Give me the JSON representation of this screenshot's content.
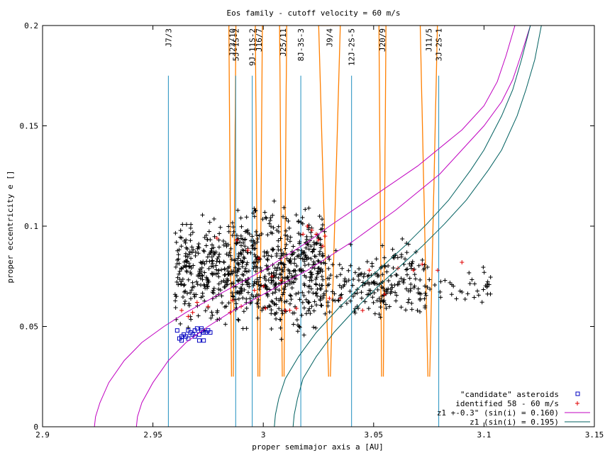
{
  "chart_data": {
    "type": "scatter",
    "title": "Eos family - cutoff velocity = 60 m/s",
    "xlabel": "proper semimajor axis a [AU]",
    "ylabel": "proper eccentricity e []",
    "xlim": [
      2.9,
      3.15
    ],
    "ylim": [
      0,
      0.2
    ],
    "xticks": [
      2.9,
      2.95,
      3.0,
      3.05,
      3.1,
      3.15
    ],
    "xtick_labels": [
      "2.9",
      "2.95",
      "3",
      "3.05",
      "3.1",
      "3.15"
    ],
    "yticks": [
      0,
      0.05,
      0.1,
      0.15,
      0.2
    ],
    "ytick_labels": [
      "0",
      "0.05",
      "0.1",
      "0.15",
      "0.2"
    ],
    "grid": false,
    "legend_position": "bottom-right",
    "resonances": [
      {
        "label": "J7/3",
        "a": 2.957,
        "top_e": 0.175,
        "kind": "three-body"
      },
      {
        "label": "J23/10",
        "a": 2.986,
        "top_e": 0.2,
        "kind": "two-body"
      },
      {
        "label": "5J-1S-2",
        "a": 2.9875,
        "top_e": 0.175,
        "kind": "three-body"
      },
      {
        "label": "9J-11S-2",
        "a": 2.995,
        "top_e": 0.175,
        "kind": "three-body"
      },
      {
        "label": "J16/7",
        "a": 2.998,
        "top_e": 0.2,
        "kind": "two-body"
      },
      {
        "label": "J25/11",
        "a": 3.009,
        "top_e": 0.2,
        "kind": "two-body"
      },
      {
        "label": "8J-3S-3",
        "a": 3.017,
        "top_e": 0.175,
        "kind": "three-body"
      },
      {
        "label": "J9/4",
        "a": 3.03,
        "top_e": 0.2,
        "kind": "two-body"
      },
      {
        "label": "12J-2S-5",
        "a": 3.04,
        "top_e": 0.175,
        "kind": "three-body"
      },
      {
        "label": "J20/9",
        "a": 3.054,
        "top_e": 0.2,
        "kind": "two-body"
      },
      {
        "label": "J11/5",
        "a": 3.075,
        "top_e": 0.2,
        "kind": "two-body"
      },
      {
        "label": "3J-2S-1",
        "a": 3.0795,
        "top_e": 0.175,
        "kind": "three-body"
      }
    ],
    "resonance_colors": {
      "two-body": "#ff7f00",
      "three-body": "#1f8fbf"
    },
    "series": [
      {
        "name": "\"candidate\" asteroids",
        "color": "#0000c0",
        "marker": "square",
        "x": [
          2.961,
          2.962,
          2.963,
          2.964,
          2.965,
          2.966,
          2.966,
          2.967,
          2.968,
          2.969,
          2.969,
          2.97,
          2.971,
          2.971,
          2.972,
          2.972,
          2.973,
          2.973,
          2.974,
          2.975,
          2.976,
          2.963
        ],
        "y": [
          0.048,
          0.044,
          0.043,
          0.046,
          0.045,
          0.044,
          0.048,
          0.047,
          0.046,
          0.045,
          0.048,
          0.049,
          0.046,
          0.043,
          0.048,
          0.049,
          0.047,
          0.043,
          0.047,
          0.048,
          0.047,
          0.045
        ]
      },
      {
        "name": "identified 58 - 60 m/s",
        "color": "#e00000",
        "marker": "plus",
        "x": [
          2.963,
          2.966,
          2.968,
          2.97,
          2.975,
          2.985,
          2.986,
          2.988,
          2.99,
          2.993,
          2.996,
          2.998,
          3.0,
          3.004,
          3.008,
          3.012,
          3.015,
          3.018,
          3.02,
          3.022,
          3.024,
          3.025,
          3.027,
          3.028,
          3.03,
          3.035,
          3.045,
          3.048,
          3.055,
          3.061,
          3.068,
          3.072,
          3.079,
          3.09,
          2.979,
          3.001,
          3.01
        ],
        "y": [
          0.058,
          0.055,
          0.057,
          0.062,
          0.06,
          0.057,
          0.063,
          0.093,
          0.06,
          0.088,
          0.068,
          0.084,
          0.07,
          0.075,
          0.073,
          0.058,
          0.059,
          0.096,
          0.1,
          0.098,
          0.096,
          0.093,
          0.09,
          0.095,
          0.064,
          0.064,
          0.058,
          0.078,
          0.066,
          0.079,
          0.078,
          0.081,
          0.078,
          0.082,
          0.094,
          0.059,
          0.058
        ]
      },
      {
        "name": "z1 +-0.3\" (sin(i) = 0.160)",
        "color": "#c000c0",
        "marker": "line",
        "curves": [
          {
            "x": [
              2.9235,
              2.924,
              2.926,
              2.93,
              2.937,
              2.945,
              2.955,
              2.965,
              2.975,
              2.99,
              3.0,
              3.01,
              3.02,
              3.03,
              3.05,
              3.07,
              3.09,
              3.1,
              3.106,
              3.11,
              3.114
            ],
            "y": [
              0,
              0.005,
              0.012,
              0.022,
              0.033,
              0.042,
              0.05,
              0.057,
              0.063,
              0.072,
              0.078,
              0.085,
              0.092,
              0.1,
              0.115,
              0.13,
              0.148,
              0.16,
              0.172,
              0.185,
              0.2
            ]
          },
          {
            "x": [
              2.9425,
              2.943,
              2.945,
              2.95,
              2.957,
              2.965,
              2.975,
              2.985,
              2.995,
              3.01,
              3.02,
              3.03,
              3.04,
              3.06,
              3.08,
              3.1,
              3.108,
              3.113,
              3.117,
              3.121
            ],
            "y": [
              0,
              0.005,
              0.012,
              0.022,
              0.033,
              0.042,
              0.05,
              0.057,
              0.063,
              0.072,
              0.078,
              0.085,
              0.092,
              0.108,
              0.126,
              0.15,
              0.162,
              0.173,
              0.186,
              0.2
            ]
          }
        ]
      },
      {
        "name": "z1 (sin(i) = 0.195)",
        "color": "#006060",
        "marker": "line",
        "curves": [
          {
            "x": [
              3.005,
              3.0055,
              3.007,
              3.01,
              3.016,
              3.024,
              3.034,
              3.044,
              3.054,
              3.064,
              3.074,
              3.084,
              3.094,
              3.1,
              3.108,
              3.113,
              3.117,
              3.121
            ],
            "y": [
              0,
              0.006,
              0.014,
              0.024,
              0.035,
              0.047,
              0.059,
              0.07,
              0.08,
              0.09,
              0.101,
              0.113,
              0.128,
              0.138,
              0.155,
              0.168,
              0.183,
              0.2
            ]
          },
          {
            "x": [
              3.0135,
              3.014,
              3.0155,
              3.018,
              3.024,
              3.032,
              3.042,
              3.052,
              3.062,
              3.072,
              3.082,
              3.092,
              3.102,
              3.108,
              3.115,
              3.119,
              3.123,
              3.126
            ],
            "y": [
              0,
              0.006,
              0.014,
              0.024,
              0.035,
              0.047,
              0.059,
              0.07,
              0.08,
              0.09,
              0.101,
              0.113,
              0.128,
              0.138,
              0.155,
              0.168,
              0.183,
              0.2
            ]
          }
        ]
      },
      {
        "name": "",
        "color": "#000000",
        "marker": "plus",
        "clusters": [
          {
            "x": [
              2.96,
              2.985
            ],
            "y": [
              0.06,
              0.095
            ],
            "count": 260
          },
          {
            "x": [
              2.985,
              3.028
            ],
            "y": [
              0.058,
              0.098
            ],
            "count": 560
          },
          {
            "x": [
              3.028,
              3.05
            ],
            "y": [
              0.058,
              0.082
            ],
            "count": 90
          },
          {
            "x": [
              3.05,
              3.075
            ],
            "y": [
              0.06,
              0.085
            ],
            "count": 130
          },
          {
            "x": [
              3.075,
              3.103
            ],
            "y": [
              0.064,
              0.078
            ],
            "count": 36
          }
        ]
      }
    ]
  }
}
